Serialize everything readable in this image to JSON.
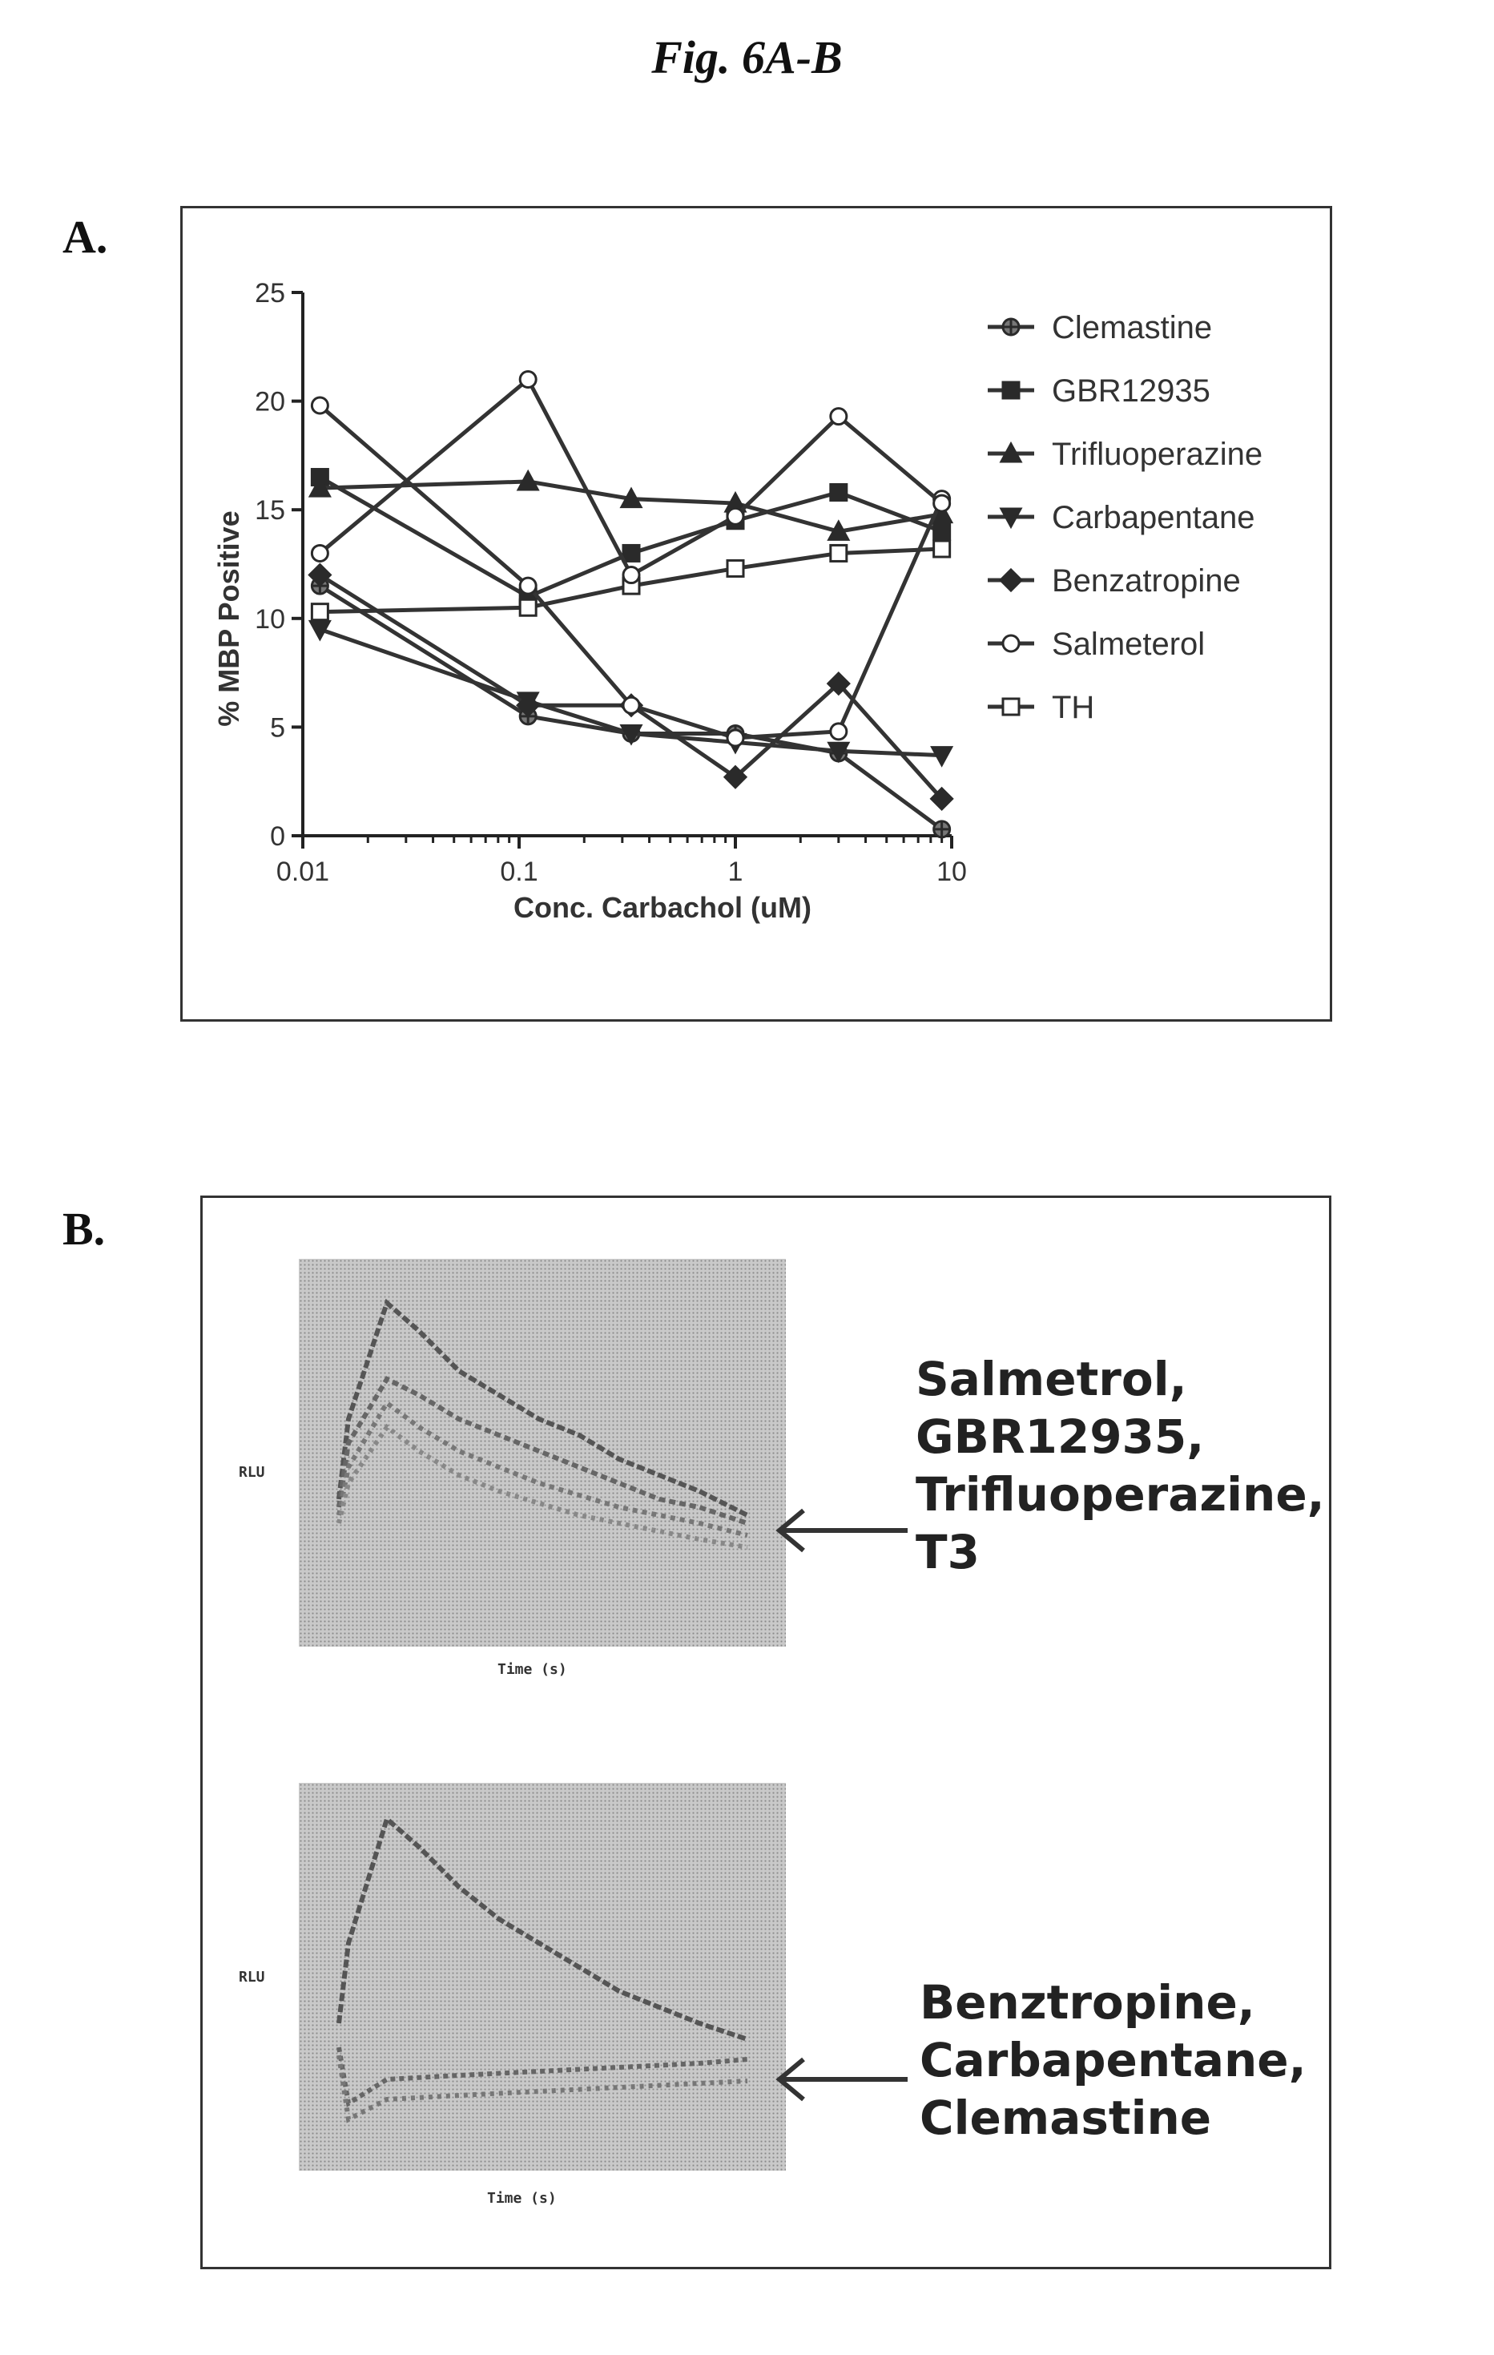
{
  "figure": {
    "title": "Fig. 6A-B"
  },
  "panel_a": {
    "label": "A."
  },
  "panel_b": {
    "label": "B.",
    "top_plot": {
      "ylabel": "RLU",
      "xlabel": "Time (s)",
      "arrow_label": [
        "Salmetrol,",
        "GBR12935,",
        "Trifluoperazine,",
        "T3"
      ]
    },
    "bottom_plot": {
      "ylabel": "RLU",
      "xlabel": "Time (s)",
      "arrow_label": [
        "Benztropine,",
        "Carbapentane,",
        "Clemastine"
      ]
    }
  },
  "chart_data": {
    "type": "line",
    "xlabel": "Conc. Carbachol (uM)",
    "ylabel": "% MBP Positive",
    "x_scale": "log",
    "xlim": [
      0.01,
      10
    ],
    "ylim": [
      0,
      25
    ],
    "x_ticks": [
      "0.01",
      "0.1",
      "1",
      "10"
    ],
    "y_ticks": [
      "0",
      "5",
      "10",
      "15",
      "20",
      "25"
    ],
    "x": [
      0.012,
      0.11,
      0.33,
      1.0,
      3.0,
      9.0
    ],
    "legend_position": "right",
    "series": [
      {
        "name": "Clemastine",
        "marker": "circle-cross",
        "values": [
          11.5,
          5.5,
          4.7,
          4.7,
          3.8,
          0.3
        ]
      },
      {
        "name": "GBR12935",
        "marker": "square",
        "values": [
          16.5,
          11.0,
          13.0,
          14.5,
          15.8,
          14.0
        ]
      },
      {
        "name": "Trifluoperazine",
        "marker": "triangle",
        "values": [
          16.0,
          16.3,
          15.5,
          15.3,
          14.0,
          14.8
        ]
      },
      {
        "name": "Carbapentane",
        "marker": "triangle-down",
        "values": [
          9.5,
          6.2,
          4.7,
          4.3,
          3.9,
          3.7
        ]
      },
      {
        "name": "Benzatropine",
        "marker": "diamond",
        "values": [
          12.0,
          6.0,
          6.0,
          2.7,
          7.0,
          1.7
        ]
      },
      {
        "name": "Salmeterol",
        "marker": "circle-open",
        "values": [
          19.8,
          11.5,
          6.0,
          4.5,
          4.8,
          15.5
        ]
      },
      {
        "name": "TH",
        "marker": "square-open",
        "values": [
          10.3,
          10.5,
          11.5,
          12.3,
          13.0,
          13.2
        ]
      },
      {
        "name": "",
        "marker": "circle-open",
        "values": [
          13.0,
          21.0,
          12.0,
          14.7,
          19.3,
          15.3
        ]
      }
    ]
  }
}
